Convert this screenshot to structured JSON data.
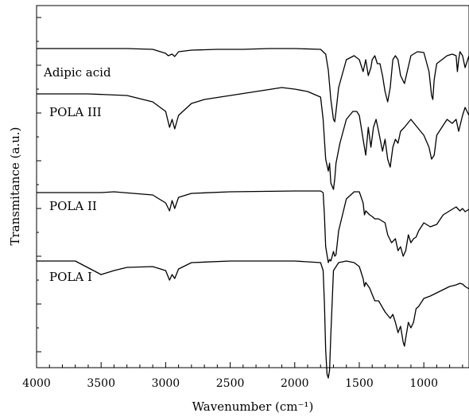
{
  "chart_data": {
    "type": "line",
    "title": "",
    "xlabel": "Wavenumber (cm⁻¹)",
    "ylabel": "Transmitance (a.u.)",
    "xlim": [
      4000,
      650
    ],
    "x_reversed": true,
    "x_ticks": [
      4000,
      3500,
      3000,
      2500,
      2000,
      1500,
      1000
    ],
    "x_tick_labels": [
      "4000",
      "3500",
      "3000",
      "2500",
      "2000",
      "1500",
      "1000"
    ],
    "y_ticks_shown": false,
    "grid": false,
    "legend": "none",
    "series": [
      {
        "name": "Adipic acid",
        "x": [
          4000,
          3300,
          3100,
          3000,
          2980,
          2950,
          2930,
          2900,
          2800,
          2600,
          2400,
          2200,
          2000,
          1800,
          1760,
          1740,
          1720,
          1700,
          1690,
          1680,
          1660,
          1600,
          1540,
          1500,
          1470,
          1450,
          1430,
          1410,
          1400,
          1380,
          1360,
          1340,
          1320,
          1300,
          1280,
          1260,
          1240,
          1220,
          1200,
          1180,
          1150,
          1100,
          1050,
          1000,
          960,
          940,
          930,
          920,
          900,
          860,
          820,
          780,
          750,
          740,
          730,
          720,
          700,
          680,
          650
        ],
        "y": [
          61,
          61,
          62,
          67,
          70,
          68,
          71,
          65,
          63,
          62,
          62,
          61,
          61,
          62,
          68,
          88,
          125,
          150,
          153,
          140,
          110,
          75,
          70,
          75,
          90,
          75,
          95,
          85,
          75,
          70,
          80,
          80,
          95,
          115,
          128,
          110,
          75,
          70,
          75,
          95,
          105,
          70,
          65,
          66,
          90,
          120,
          125,
          100,
          80,
          75,
          70,
          68,
          70,
          90,
          75,
          65,
          70,
          85,
          70
        ]
      },
      {
        "name": "POLA III",
        "x": [
          4000,
          3600,
          3300,
          3100,
          3000,
          2970,
          2950,
          2930,
          2900,
          2800,
          2700,
          2500,
          2300,
          2100,
          2000,
          1900,
          1800,
          1780,
          1760,
          1740,
          1730,
          1720,
          1700,
          1690,
          1680,
          1650,
          1600,
          1550,
          1520,
          1500,
          1470,
          1450,
          1430,
          1410,
          1390,
          1370,
          1350,
          1320,
          1300,
          1280,
          1260,
          1240,
          1220,
          1200,
          1180,
          1150,
          1100,
          1050,
          1000,
          960,
          940,
          920,
          900,
          860,
          820,
          780,
          750,
          730,
          700,
          680,
          650
        ],
        "y": [
          118,
          118,
          120,
          128,
          140,
          160,
          150,
          162,
          145,
          130,
          125,
          120,
          115,
          110,
          112,
          115,
          122,
          150,
          200,
          215,
          205,
          230,
          238,
          225,
          205,
          180,
          150,
          140,
          140,
          145,
          175,
          195,
          160,
          185,
          160,
          150,
          165,
          190,
          175,
          200,
          210,
          185,
          175,
          180,
          165,
          160,
          150,
          160,
          170,
          185,
          200,
          195,
          170,
          160,
          150,
          155,
          150,
          165,
          145,
          135,
          145
        ]
      },
      {
        "name": "POLA II",
        "x": [
          4000,
          3500,
          3400,
          3100,
          3000,
          2970,
          2950,
          2930,
          2900,
          2800,
          2500,
          2000,
          1800,
          1780,
          1770,
          1760,
          1740,
          1730,
          1720,
          1710,
          1700,
          1690,
          1680,
          1660,
          1600,
          1540,
          1500,
          1470,
          1460,
          1450,
          1420,
          1400,
          1380,
          1350,
          1300,
          1280,
          1250,
          1220,
          1200,
          1180,
          1160,
          1140,
          1120,
          1100,
          1080,
          1060,
          1040,
          1000,
          950,
          900,
          850,
          800,
          750,
          720,
          700,
          680,
          650
        ],
        "y": [
          242,
          242,
          241,
          245,
          255,
          265,
          252,
          262,
          248,
          243,
          241,
          240,
          240,
          242,
          270,
          310,
          330,
          326,
          328,
          322,
          316,
          322,
          320,
          290,
          250,
          241,
          241,
          255,
          270,
          265,
          270,
          272,
          275,
          275,
          280,
          295,
          305,
          300,
          315,
          310,
          322,
          315,
          295,
          305,
          300,
          298,
          290,
          280,
          285,
          282,
          270,
          265,
          260,
          265,
          262,
          266,
          263
        ]
      },
      {
        "name": "POLA I",
        "x": [
          4000,
          3700,
          3500,
          3400,
          3300,
          3100,
          3000,
          2970,
          2950,
          2930,
          2900,
          2800,
          2500,
          2000,
          1800,
          1780,
          1770,
          1760,
          1750,
          1740,
          1730,
          1720,
          1700,
          1660,
          1600,
          1540,
          1500,
          1470,
          1460,
          1450,
          1420,
          1400,
          1380,
          1350,
          1300,
          1260,
          1240,
          1220,
          1200,
          1180,
          1160,
          1150,
          1140,
          1120,
          1100,
          1080,
          1060,
          1040,
          1000,
          950,
          900,
          850,
          800,
          750,
          720,
          700,
          680,
          650
        ],
        "y": [
          328,
          328,
          345,
          340,
          336,
          335,
          340,
          352,
          345,
          350,
          338,
          330,
          328,
          328,
          330,
          340,
          380,
          440,
          470,
          475,
          465,
          420,
          340,
          330,
          328,
          330,
          335,
          350,
          360,
          355,
          362,
          370,
          378,
          378,
          392,
          400,
          395,
          405,
          418,
          410,
          430,
          435,
          425,
          405,
          412,
          405,
          388,
          385,
          375,
          372,
          368,
          364,
          360,
          358,
          356,
          357,
          360,
          363
        ]
      }
    ],
    "annotations": [
      "Adipic acid",
      "POLA III",
      "POLA II",
      "POLA I"
    ]
  }
}
